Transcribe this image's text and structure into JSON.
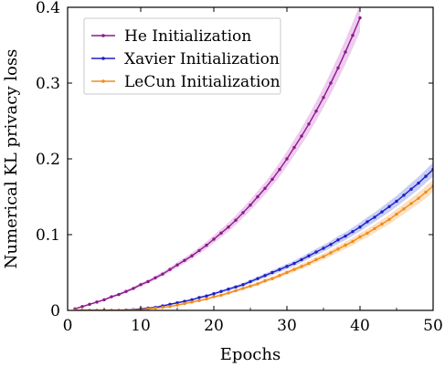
{
  "chart_data": {
    "type": "line",
    "xlabel": "Epochs",
    "ylabel": "Numerical KL privacy loss",
    "xlim": [
      0,
      50
    ],
    "ylim": [
      0,
      0.4
    ],
    "xticks": [
      "0",
      "10",
      "20",
      "30",
      "40",
      "50"
    ],
    "yticks": [
      "0",
      "0.1",
      "0.2",
      "0.3",
      "0.4"
    ],
    "legend_position": "top-left",
    "grid": false,
    "series": [
      {
        "name": "He Initialization",
        "color": "#8b1a8b",
        "band_color": "#e2a3e2",
        "x": [
          1,
          2,
          3,
          4,
          5,
          6,
          7,
          8,
          9,
          10,
          11,
          12,
          13,
          14,
          15,
          16,
          17,
          18,
          19,
          20,
          21,
          22,
          23,
          24,
          25,
          26,
          27,
          28,
          29,
          30,
          31,
          32,
          33,
          34,
          35,
          36,
          37,
          38,
          39,
          40
        ],
        "y": [
          0.002,
          0.005,
          0.008,
          0.011,
          0.014,
          0.018,
          0.021,
          0.025,
          0.029,
          0.034,
          0.038,
          0.043,
          0.048,
          0.054,
          0.06,
          0.066,
          0.072,
          0.079,
          0.086,
          0.094,
          0.102,
          0.11,
          0.119,
          0.129,
          0.139,
          0.15,
          0.161,
          0.173,
          0.186,
          0.2,
          0.215,
          0.23,
          0.246,
          0.263,
          0.281,
          0.3,
          0.32,
          0.341,
          0.363,
          0.386
        ]
      },
      {
        "name": "Xavier Initialization",
        "color": "#1f1fc8",
        "band_color": "#9aa8ee",
        "x": [
          1,
          2,
          3,
          4,
          5,
          6,
          7,
          8,
          9,
          10,
          11,
          12,
          13,
          14,
          15,
          16,
          17,
          18,
          19,
          20,
          21,
          22,
          23,
          24,
          25,
          26,
          27,
          28,
          29,
          30,
          31,
          32,
          33,
          34,
          35,
          36,
          37,
          38,
          39,
          40,
          41,
          42,
          43,
          44,
          45,
          46,
          47,
          48,
          49,
          50
        ],
        "y": [
          0.0,
          0.0,
          0.0,
          0.0,
          0.0,
          0.0,
          0.0,
          0.0005,
          0.001,
          0.002,
          0.003,
          0.004,
          0.006,
          0.008,
          0.01,
          0.012,
          0.014,
          0.017,
          0.019,
          0.022,
          0.025,
          0.028,
          0.031,
          0.034,
          0.038,
          0.042,
          0.046,
          0.05,
          0.054,
          0.058,
          0.062,
          0.067,
          0.072,
          0.077,
          0.082,
          0.087,
          0.093,
          0.098,
          0.104,
          0.11,
          0.117,
          0.123,
          0.13,
          0.137,
          0.144,
          0.152,
          0.16,
          0.168,
          0.177,
          0.186
        ]
      },
      {
        "name": "LeCun Initialization",
        "color": "#f28c1a",
        "band_color": "#f8c890",
        "x": [
          1,
          2,
          3,
          4,
          5,
          6,
          7,
          8,
          9,
          10,
          11,
          12,
          13,
          14,
          15,
          16,
          17,
          18,
          19,
          20,
          21,
          22,
          23,
          24,
          25,
          26,
          27,
          28,
          29,
          30,
          31,
          32,
          33,
          34,
          35,
          36,
          37,
          38,
          39,
          40,
          41,
          42,
          43,
          44,
          45,
          46,
          47,
          48,
          49,
          50
        ],
        "y": [
          0.0,
          0.0,
          0.0,
          0.0,
          0.0,
          0.0,
          0.0,
          0.0,
          0.0005,
          0.001,
          0.002,
          0.003,
          0.004,
          0.005,
          0.007,
          0.009,
          0.011,
          0.013,
          0.015,
          0.018,
          0.02,
          0.023,
          0.026,
          0.029,
          0.032,
          0.035,
          0.039,
          0.042,
          0.046,
          0.05,
          0.054,
          0.058,
          0.062,
          0.067,
          0.071,
          0.076,
          0.081,
          0.086,
          0.091,
          0.097,
          0.102,
          0.108,
          0.114,
          0.12,
          0.127,
          0.134,
          0.141,
          0.148,
          0.156,
          0.164
        ]
      }
    ]
  }
}
